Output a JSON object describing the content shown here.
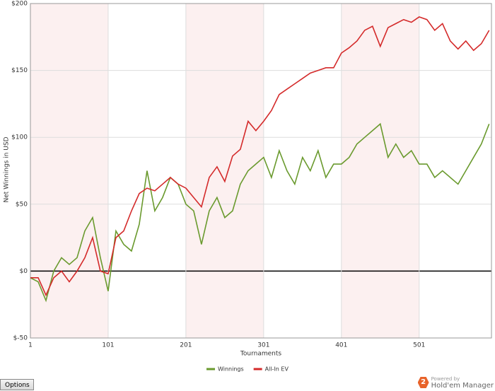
{
  "chart_data": {
    "type": "line",
    "xlabel": "Tournaments",
    "ylabel": "Net Winnings in USD",
    "x": [
      1,
      11,
      21,
      31,
      41,
      51,
      61,
      71,
      81,
      91,
      101,
      111,
      121,
      131,
      141,
      151,
      161,
      171,
      181,
      191,
      201,
      211,
      221,
      231,
      241,
      251,
      261,
      271,
      281,
      291,
      301,
      311,
      321,
      331,
      341,
      351,
      361,
      371,
      381,
      391,
      401,
      411,
      421,
      431,
      441,
      451,
      461,
      471,
      481,
      491,
      501,
      511,
      521,
      531,
      541,
      551,
      561,
      571,
      581,
      591
    ],
    "series": [
      {
        "name": "Winnings",
        "color": "#6a9a2e",
        "values": [
          -5,
          -8,
          -22,
          0,
          10,
          5,
          10,
          30,
          40,
          10,
          -15,
          30,
          20,
          15,
          35,
          75,
          45,
          55,
          70,
          65,
          50,
          45,
          20,
          45,
          55,
          40,
          45,
          65,
          75,
          80,
          85,
          70,
          90,
          75,
          65,
          85,
          75,
          90,
          70,
          80,
          80,
          85,
          95,
          100,
          105,
          110,
          85,
          95,
          85,
          90,
          80,
          80,
          70,
          75,
          70,
          65,
          75,
          85,
          95,
          110
        ]
      },
      {
        "name": "All-In EV",
        "color": "#d42a2a",
        "values": [
          -5,
          -5,
          -18,
          -5,
          0,
          -8,
          0,
          10,
          25,
          0,
          -2,
          25,
          30,
          45,
          58,
          62,
          60,
          65,
          70,
          65,
          62,
          55,
          48,
          70,
          78,
          67,
          86,
          91,
          112,
          105,
          112,
          120,
          132,
          136,
          140,
          144,
          148,
          150,
          152,
          152,
          163,
          167,
          172,
          180,
          183,
          168,
          182,
          185,
          188,
          186,
          190,
          188,
          180,
          185,
          172,
          166,
          172,
          165,
          170,
          180
        ]
      }
    ],
    "xlim": [
      1,
      594
    ],
    "xticks": [
      1,
      101,
      201,
      301,
      401,
      501
    ],
    "ylim": [
      -50,
      200
    ],
    "yticks": [
      {
        "value": -50,
        "label": "$-50"
      },
      {
        "value": 0,
        "label": "$0"
      },
      {
        "value": 50,
        "label": "$50"
      },
      {
        "value": 100,
        "label": "$100"
      },
      {
        "value": 150,
        "label": "$150"
      },
      {
        "value": 200,
        "label": "$200"
      }
    ],
    "grid": true
  },
  "ui": {
    "options_button": "Options",
    "logo": "2",
    "powered_by": "Powered by",
    "brand": "Hold'em Manager"
  }
}
